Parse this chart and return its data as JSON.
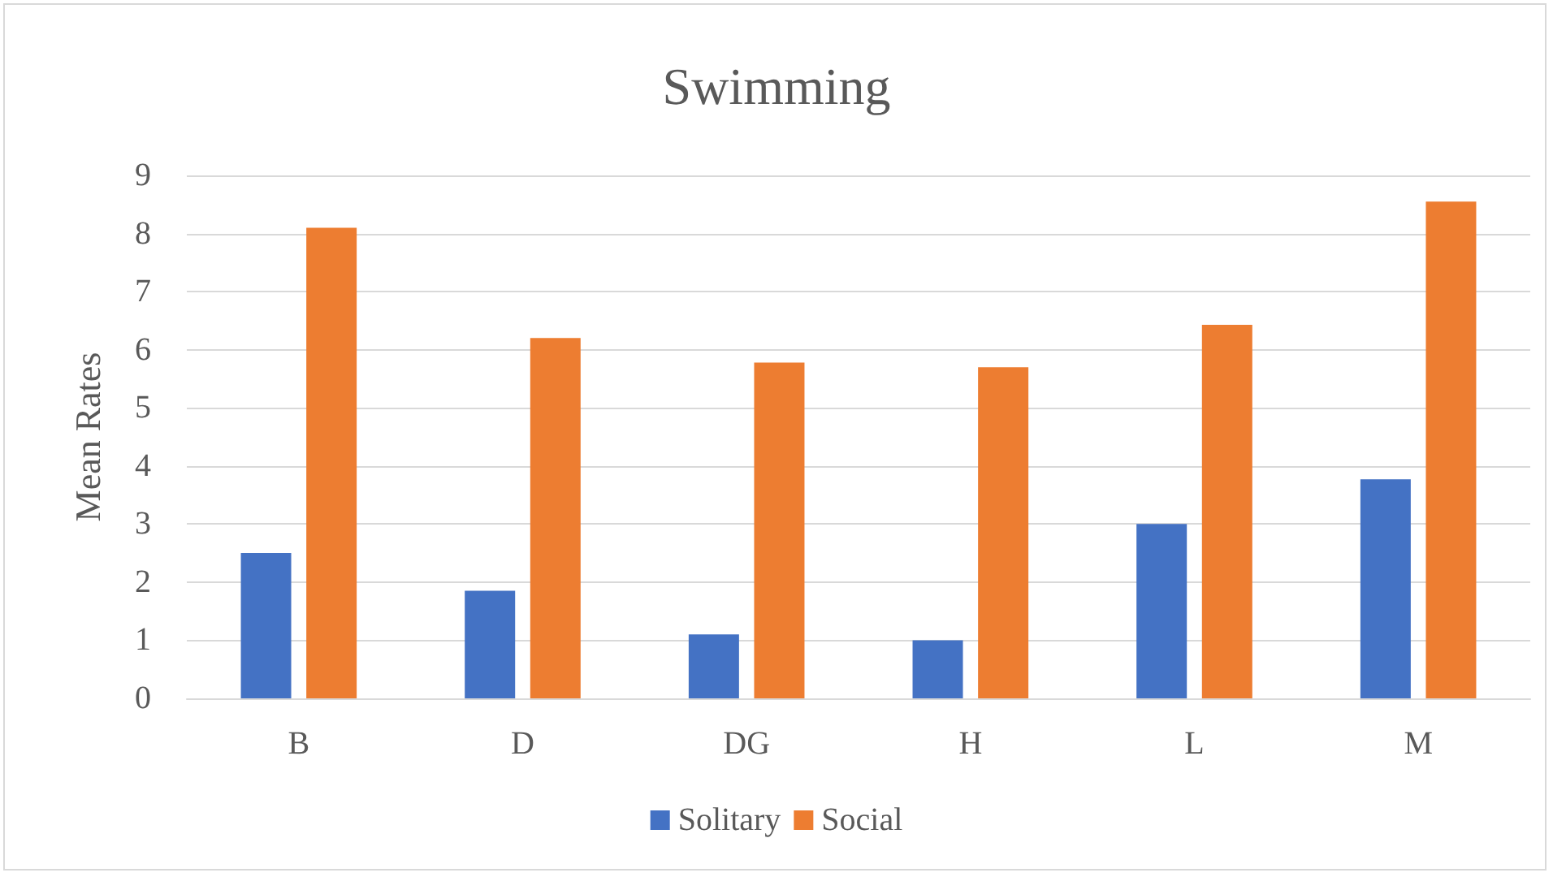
{
  "chart_data": {
    "type": "bar",
    "title": "Swimming",
    "ylabel": "Mean Rates",
    "categories": [
      "B",
      "D",
      "DG",
      "H",
      "L",
      "M"
    ],
    "series": [
      {
        "name": "Solitary",
        "color": "#4472c4",
        "values": [
          2.5,
          1.85,
          1.1,
          1.0,
          3.0,
          3.77
        ]
      },
      {
        "name": "Social",
        "color": "#ed7d31",
        "values": [
          8.1,
          6.2,
          5.78,
          5.7,
          6.43,
          8.55
        ]
      }
    ],
    "ylim": [
      0,
      9
    ],
    "yticks": [
      0,
      1,
      2,
      3,
      4,
      5,
      6,
      7,
      8,
      9
    ],
    "grid": "y",
    "legend": "bottom"
  }
}
